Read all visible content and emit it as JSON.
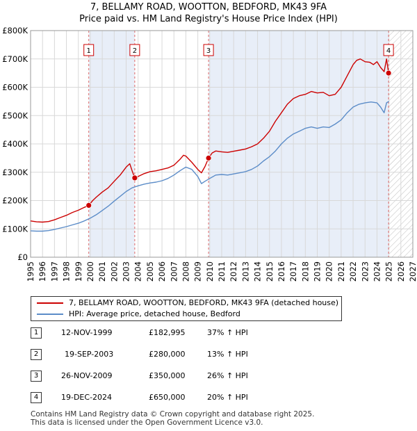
{
  "chart_data": {
    "type": "line",
    "title_line1": "7, BELLAMY ROAD, WOOTTON, BEDFORD, MK43 9FA",
    "title_line2": "Price paid vs. HM Land Registry's House Price Index (HPI)",
    "xlim": [
      1995,
      2027
    ],
    "ylim": [
      0,
      800000
    ],
    "x_ticks": [
      1995,
      1996,
      1997,
      1998,
      1999,
      2000,
      2001,
      2002,
      2003,
      2004,
      2005,
      2006,
      2007,
      2008,
      2009,
      2010,
      2011,
      2012,
      2013,
      2014,
      2015,
      2016,
      2017,
      2018,
      2019,
      2020,
      2021,
      2022,
      2023,
      2024,
      2025,
      2026,
      2027
    ],
    "y_ticks": [
      {
        "value": 0,
        "label": "£0"
      },
      {
        "value": 100000,
        "label": "£100K"
      },
      {
        "value": 200000,
        "label": "£200K"
      },
      {
        "value": 300000,
        "label": "£300K"
      },
      {
        "value": 400000,
        "label": "£400K"
      },
      {
        "value": 500000,
        "label": "£500K"
      },
      {
        "value": 600000,
        "label": "£600K"
      },
      {
        "value": 700000,
        "label": "£700K"
      },
      {
        "value": 800000,
        "label": "£800K"
      }
    ],
    "grid": true,
    "forecast_start": 2025.0,
    "shaded_periods": [
      [
        1999.87,
        2003.72
      ],
      [
        2009.9,
        2024.97
      ]
    ],
    "series": [
      {
        "name": "7, BELLAMY ROAD, WOOTTON, BEDFORD, MK43 9FA (detached house)",
        "color": "#cc0000",
        "x": [
          1995.0,
          1995.5,
          1996.0,
          1996.5,
          1997.0,
          1997.5,
          1998.0,
          1998.5,
          1999.0,
          1999.5,
          1999.87,
          2000.2,
          2000.5,
          2001.0,
          2001.5,
          2002.0,
          2002.5,
          2003.0,
          2003.3,
          2003.5,
          2003.72,
          2004.0,
          2004.5,
          2005.0,
          2005.5,
          2006.0,
          2006.5,
          2007.0,
          2007.5,
          2007.8,
          2008.0,
          2008.5,
          2009.0,
          2009.3,
          2009.6,
          2009.9,
          2010.2,
          2010.5,
          2011.0,
          2011.5,
          2012.0,
          2012.5,
          2013.0,
          2013.5,
          2014.0,
          2014.5,
          2015.0,
          2015.5,
          2016.0,
          2016.5,
          2017.0,
          2017.5,
          2018.0,
          2018.5,
          2019.0,
          2019.5,
          2020.0,
          2020.5,
          2021.0,
          2021.5,
          2022.0,
          2022.3,
          2022.6,
          2023.0,
          2023.4,
          2023.7,
          2024.0,
          2024.3,
          2024.6,
          2024.8,
          2024.97
        ],
        "y": [
          128000,
          125000,
          124000,
          126000,
          132000,
          140000,
          148000,
          158000,
          166000,
          176000,
          182995,
          200000,
          212000,
          230000,
          245000,
          268000,
          290000,
          318000,
          330000,
          305000,
          280000,
          285000,
          295000,
          302000,
          305000,
          310000,
          315000,
          325000,
          345000,
          360000,
          357000,
          335000,
          310000,
          298000,
          320000,
          350000,
          368000,
          375000,
          372000,
          370000,
          374000,
          378000,
          382000,
          390000,
          400000,
          420000,
          445000,
          480000,
          510000,
          540000,
          560000,
          570000,
          575000,
          585000,
          580000,
          582000,
          570000,
          575000,
          600000,
          640000,
          680000,
          695000,
          700000,
          690000,
          688000,
          680000,
          690000,
          670000,
          655000,
          700000,
          650000
        ]
      },
      {
        "name": "HPI: Average price, detached house, Bedford",
        "color": "#5b8cc8",
        "x": [
          1995.0,
          1995.5,
          1996.0,
          1996.5,
          1997.0,
          1997.5,
          1998.0,
          1998.5,
          1999.0,
          1999.5,
          2000.0,
          2000.5,
          2001.0,
          2001.5,
          2002.0,
          2002.5,
          2003.0,
          2003.5,
          2004.0,
          2004.5,
          2005.0,
          2005.5,
          2006.0,
          2006.5,
          2007.0,
          2007.5,
          2008.0,
          2008.5,
          2009.0,
          2009.3,
          2009.6,
          2010.0,
          2010.5,
          2011.0,
          2011.5,
          2012.0,
          2012.5,
          2013.0,
          2013.5,
          2014.0,
          2014.5,
          2015.0,
          2015.5,
          2016.0,
          2016.5,
          2017.0,
          2017.5,
          2018.0,
          2018.5,
          2019.0,
          2019.5,
          2020.0,
          2020.5,
          2021.0,
          2021.5,
          2022.0,
          2022.5,
          2023.0,
          2023.5,
          2024.0,
          2024.3,
          2024.6,
          2024.8,
          2025.0
        ],
        "y": [
          93000,
          92000,
          92000,
          94000,
          98000,
          103000,
          108000,
          114000,
          120000,
          128000,
          138000,
          150000,
          165000,
          180000,
          198000,
          215000,
          232000,
          245000,
          252000,
          258000,
          262000,
          265000,
          270000,
          278000,
          290000,
          305000,
          318000,
          310000,
          285000,
          260000,
          268000,
          278000,
          290000,
          292000,
          290000,
          294000,
          298000,
          302000,
          310000,
          322000,
          340000,
          355000,
          375000,
          400000,
          420000,
          435000,
          445000,
          455000,
          460000,
          455000,
          460000,
          458000,
          470000,
          485000,
          510000,
          530000,
          540000,
          545000,
          548000,
          545000,
          530000,
          510000,
          545000,
          550000
        ]
      }
    ],
    "sales": [
      {
        "label": "1",
        "x": 1999.87,
        "y": 182995
      },
      {
        "label": "2",
        "x": 2003.72,
        "y": 280000
      },
      {
        "label": "3",
        "x": 2009.9,
        "y": 350000
      },
      {
        "label": "4",
        "x": 2024.97,
        "y": 650000
      }
    ]
  },
  "legend": {
    "items": [
      {
        "label": "7, BELLAMY ROAD, WOOTTON, BEDFORD, MK43 9FA (detached house)",
        "color": "#cc0000"
      },
      {
        "label": "HPI: Average price, detached house, Bedford",
        "color": "#5b8cc8"
      }
    ]
  },
  "table": {
    "rows": [
      {
        "num": "1",
        "date": "12-NOV-1999",
        "price": "£182,995",
        "pct": "37% ↑ HPI"
      },
      {
        "num": "2",
        "date": "19-SEP-2003",
        "price": "£280,000",
        "pct": "13% ↑ HPI"
      },
      {
        "num": "3",
        "date": "26-NOV-2009",
        "price": "£350,000",
        "pct": "26% ↑ HPI"
      },
      {
        "num": "4",
        "date": "19-DEC-2024",
        "price": "£650,000",
        "pct": "20% ↑ HPI"
      }
    ]
  },
  "footer": {
    "line1": "Contains HM Land Registry data © Crown copyright and database right 2025.",
    "line2": "This data is licensed under the Open Government Licence v3.0."
  }
}
